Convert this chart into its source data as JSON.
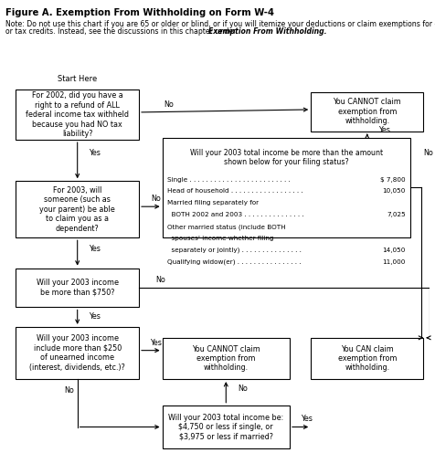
{
  "title_normal": "Figure A. ",
  "title_bold": "Exemption From Withholding on Form W-4",
  "note_line1": "Note: Do not use this chart if you are 65 or older or blind, or if you will itemize your deductions or claim exemptions for dependents",
  "note_line2_normal": "or tax credits. Instead, see the discussions in this chapter under ",
  "note_line2_italic": "Exemption From Withholding.",
  "start_here": "Start Here",
  "box1_text": "For 2002, did you have a\nright to a refund of ALL\nfederal income tax withheld\nbecause you had NO tax\nliability?",
  "box_cannot1_text": "You CANNOT claim\nexemption from\nwithholding.",
  "table_header": "Will your 2003 total income be more than the amount\nshown below for your filing status?",
  "table_entries": [
    [
      "Single . . . . . . . . . . . . . . . . . . . . . . . . .",
      "$ 7,800"
    ],
    [
      "Head of household . . . . . . . . . . . . . . . . . .",
      "10,050"
    ],
    [
      "Married filing separately for",
      ""
    ],
    [
      "  BOTH 2002 and 2003 . . . . . . . . . . . . . . .",
      "7,025"
    ],
    [
      "Other married status (include BOTH",
      ""
    ],
    [
      "  spouses' income whether filing",
      ""
    ],
    [
      "  separately or jointly) . . . . . . . . . . . . . . .",
      "14,050"
    ],
    [
      "Qualifying widow(er) . . . . . . . . . . . . . . . .",
      "11,000"
    ]
  ],
  "box2_text": "For 2003, will\nsomeone (such as\nyour parent) be able\nto claim you as a\ndependent?",
  "box3_text": "Will your 2003 income\nbe more than $750?",
  "box4_text": "Will your 2003 income\ninclude more than $250\nof unearned income\n(interest, dividends, etc.)?",
  "box_cannot2_text": "You CANNOT claim\nexemption from\nwithholding.",
  "box_can_text": "You CAN claim\nexemption from\nwithholding.",
  "box5_text": "Will your 2003 total income be:\n$4,750 or less if single, or\n$3,975 or less if married?",
  "fig_w": 4.76,
  "fig_h": 5.19,
  "dpi": 100
}
